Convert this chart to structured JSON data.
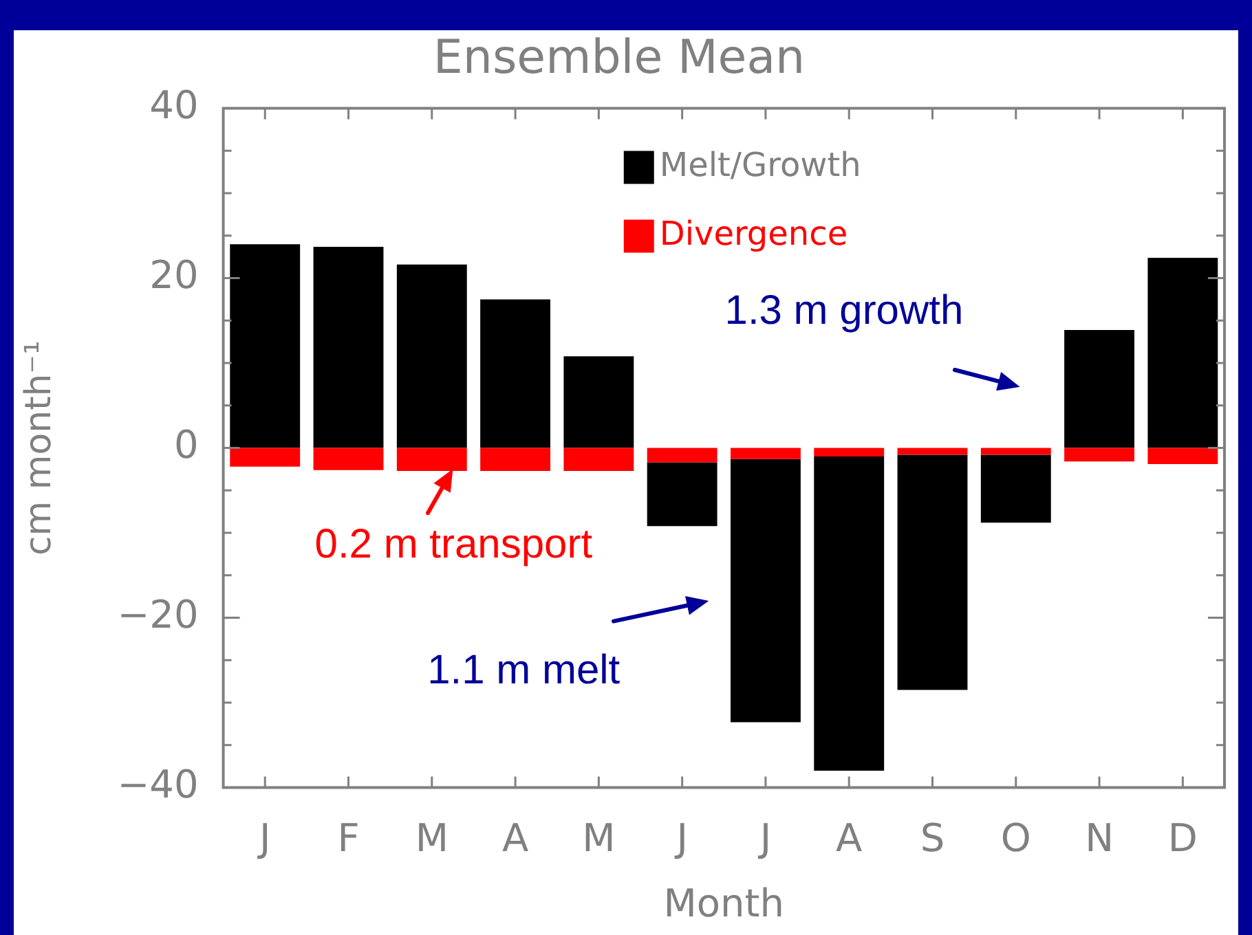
{
  "chart_data": {
    "type": "bar",
    "title": "Ensemble Mean",
    "xlabel": "Month",
    "ylabel": "cm month⁻¹",
    "categories": [
      "J",
      "F",
      "M",
      "A",
      "M",
      "J",
      "J",
      "A",
      "S",
      "O",
      "N",
      "D"
    ],
    "stacked": true,
    "series": [
      {
        "name": "Divergence",
        "color": "#ff0000",
        "values": [
          -2.2,
          -2.6,
          -2.7,
          -2.7,
          -2.7,
          -1.7,
          -1.3,
          -1.0,
          -0.8,
          -0.8,
          -1.6,
          -1.9
        ]
      },
      {
        "name": "Melt/Growth",
        "color": "#000000",
        "values": [
          24.0,
          23.7,
          21.6,
          17.5,
          10.8,
          -7.5,
          -31.0,
          -37.0,
          -27.7,
          -8.0,
          13.9,
          22.4
        ]
      }
    ],
    "ylim": [
      -40,
      40
    ],
    "yticks": [
      -40,
      -20,
      0,
      20,
      40
    ],
    "legend": "top right",
    "annotations": [
      "1.3 m growth",
      "0.2 m transport",
      "1.1 m melt"
    ]
  }
}
